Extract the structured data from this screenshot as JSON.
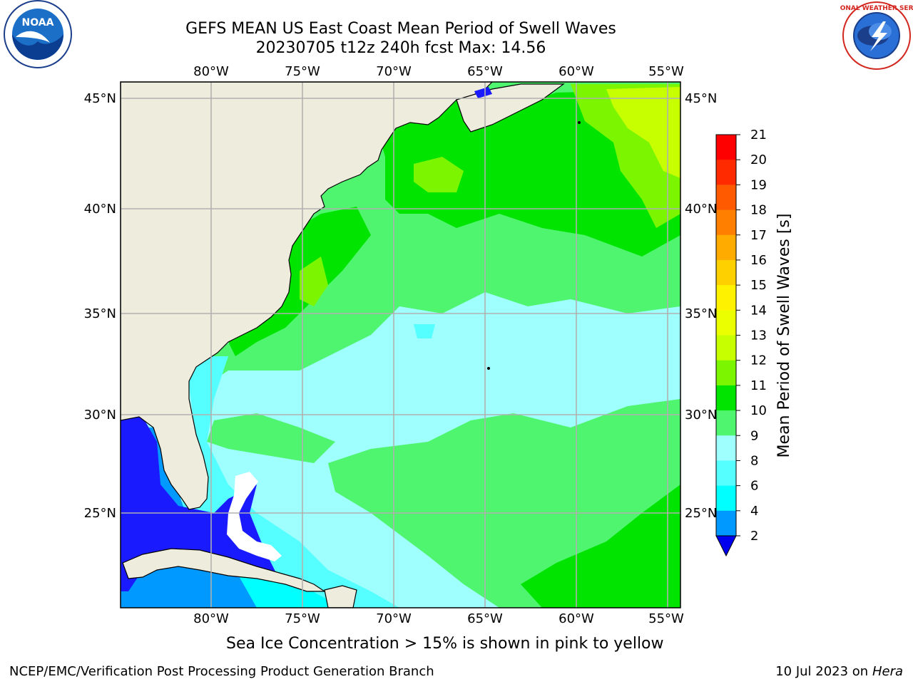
{
  "header": {
    "title_line1": "GEFS MEAN US East Coast Mean Period of Swell Waves",
    "title_line2": "20230705 t12z 240h fcst   Max: 14.56"
  },
  "logos": {
    "left": {
      "icon": "noaa-logo",
      "text": "NOAA"
    },
    "right": {
      "icon": "national-weather-service-logo",
      "text": "NATIONAL WEATHER SERVICE"
    }
  },
  "map": {
    "longitude_labels": [
      "80°W",
      "75°W",
      "70°W",
      "65°W",
      "60°W",
      "55°W"
    ],
    "latitude_labels": [
      "45°N",
      "40°N",
      "35°N",
      "30°N",
      "25°N"
    ],
    "colors": {
      "land": "#eeecdc",
      "grid": "#b0b0b0",
      "coast": "#000000"
    }
  },
  "colorbar": {
    "label": "Mean Period of Swell Waves [s]",
    "ticks": [
      "21",
      "20",
      "19",
      "18",
      "17",
      "16",
      "15",
      "14",
      "13",
      "12",
      "11",
      "10",
      "9",
      "8",
      "6",
      "4",
      "2"
    ],
    "colors": [
      "#ff0000",
      "#ff2a00",
      "#ff5a00",
      "#ff8000",
      "#ffab00",
      "#ffd000",
      "#fff200",
      "#ecff00",
      "#c8ff00",
      "#7bf600",
      "#00e400",
      "#4ff56e",
      "#9fffff",
      "#55ffff",
      "#00ffff",
      "#0099ff",
      "#1a1aff"
    ],
    "extend_color": "#0000ee"
  },
  "footer": {
    "sea_ice_note": "Sea Ice Concentration > 15% is shown in pink to yellow",
    "branch_credit": "NCEP/EMC/Verification Post Processing Product Generation Branch",
    "date": "10 Jul 2023 on ",
    "machine": "Hera"
  }
}
